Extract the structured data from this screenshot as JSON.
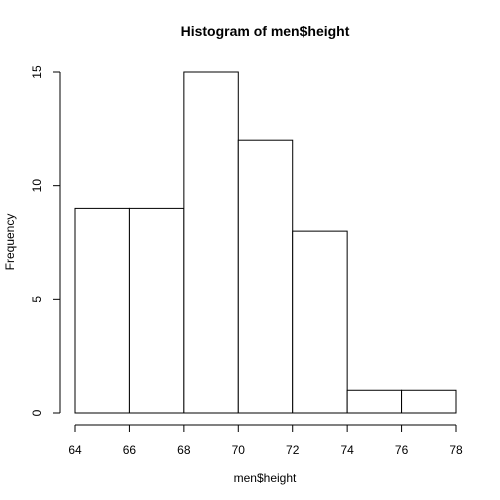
{
  "chart_data": {
    "type": "bar",
    "title": "Histogram of men$height",
    "xlabel": "men$height",
    "ylabel": "Frequency",
    "bins": [
      {
        "x0": 64,
        "x1": 66,
        "value": 9
      },
      {
        "x0": 66,
        "x1": 68,
        "value": 9
      },
      {
        "x0": 68,
        "x1": 70,
        "value": 15
      },
      {
        "x0": 70,
        "x1": 72,
        "value": 12
      },
      {
        "x0": 72,
        "x1": 74,
        "value": 8
      },
      {
        "x0": 74,
        "x1": 76,
        "value": 1
      },
      {
        "x0": 76,
        "x1": 78,
        "value": 1
      }
    ],
    "xlim": [
      64,
      78
    ],
    "ylim": [
      0,
      15
    ],
    "x_ticks": [
      "64",
      "66",
      "68",
      "70",
      "72",
      "74",
      "76",
      "78"
    ],
    "y_ticks": [
      "0",
      "5",
      "10",
      "15"
    ],
    "grid": false,
    "colors": {
      "bar_fill": "#ffffff",
      "bar_stroke": "#000000",
      "text": "#000000",
      "background": "#ffffff"
    }
  }
}
